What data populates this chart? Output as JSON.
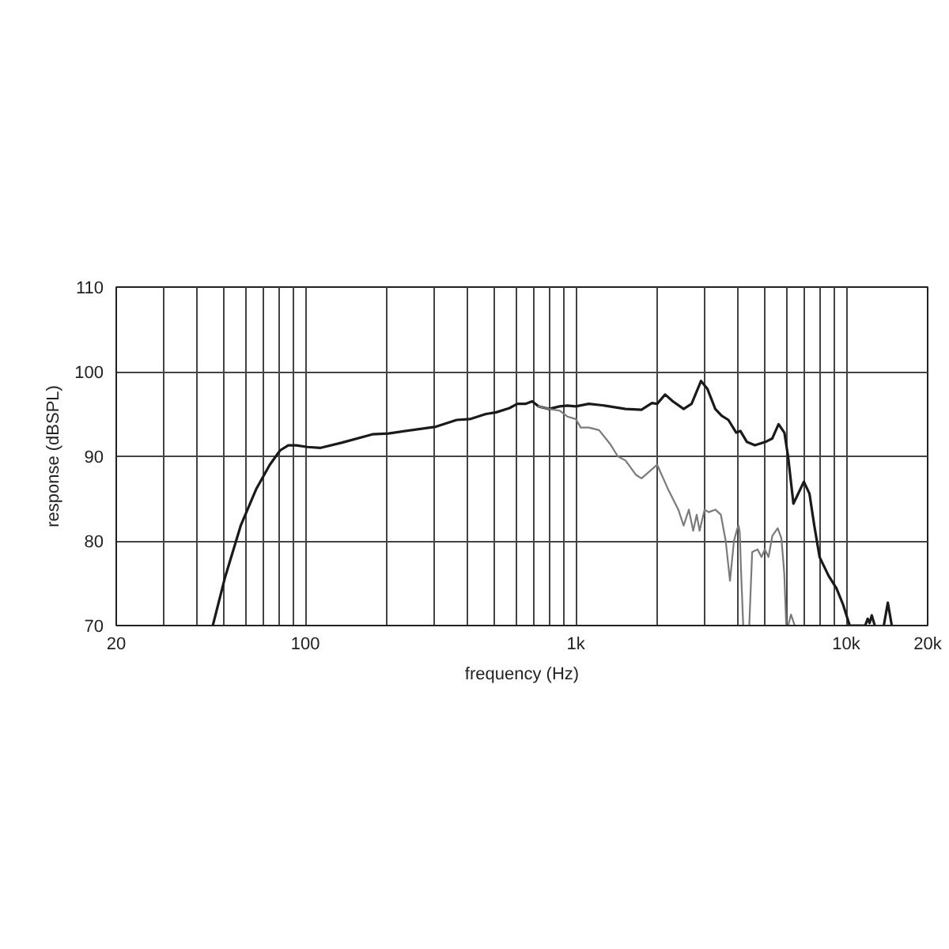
{
  "chart_data": {
    "type": "line",
    "xlabel": "frequency (Hz)",
    "ylabel": "response (dBSPL)",
    "log": "x",
    "grid": true,
    "xlim": [
      20,
      20000
    ],
    "ylim": [
      70,
      110
    ],
    "xticks": [
      20,
      {
        "value": 30,
        "label": null
      },
      {
        "value": 40,
        "label": null
      },
      {
        "value": 50,
        "label": null
      },
      {
        "value": 60,
        "label": null
      },
      {
        "value": 70,
        "label": null
      },
      {
        "value": 80,
        "label": null
      },
      {
        "value": 90,
        "label": null
      },
      100,
      {
        "value": 200,
        "label": null
      },
      {
        "value": 300,
        "label": null
      },
      {
        "value": 400,
        "label": null
      },
      {
        "value": 500,
        "label": null
      },
      {
        "value": 600,
        "label": null
      },
      {
        "value": 700,
        "label": null
      },
      {
        "value": 800,
        "label": null
      },
      {
        "value": 900,
        "label": null
      },
      {
        "value": 1000,
        "label": "1k"
      },
      {
        "value": 2000,
        "label": null
      },
      {
        "value": 3000,
        "label": null
      },
      {
        "value": 4000,
        "label": null
      },
      {
        "value": 5000,
        "label": null
      },
      {
        "value": 6000,
        "label": null
      },
      {
        "value": 7000,
        "label": null
      },
      {
        "value": 8000,
        "label": null
      },
      {
        "value": 9000,
        "label": null
      },
      {
        "value": 10000,
        "label": "10k"
      },
      {
        "value": 20000,
        "label": "20k"
      }
    ],
    "yticks": [
      70,
      80,
      90,
      100,
      110
    ],
    "series": [
      {
        "color": "#1a1a1a",
        "x": [
          45.5,
          50.4,
          57.7,
          66,
          73.9,
          80.7,
          86.5,
          92.5,
          102,
          114,
          136,
          177,
          203,
          304,
          363,
          406,
          465,
          508,
          569,
          608,
          651,
          690,
          728,
          796,
          871,
          931,
          1000,
          1117,
          1277,
          1528,
          1749,
          1913,
          2000,
          2140,
          2286,
          2505,
          2680,
          2904,
          3064,
          3280,
          3461,
          3667,
          3920,
          4060,
          4293,
          4595,
          5024,
          5325,
          5621,
          5907,
          6094,
          6380,
          6580,
          6973,
          7310,
          7620,
          7970,
          8600,
          9200,
          9730,
          10300,
          11750,
          12000,
          12200,
          12430,
          12750,
          13200,
          13770,
          14250,
          14740
        ],
        "values": [
          70.0,
          75.6,
          81.8,
          86.2,
          89.0,
          90.7,
          91.3,
          91.3,
          91.1,
          91.0,
          91.6,
          92.6,
          92.7,
          93.5,
          94.3,
          94.4,
          95.0,
          95.2,
          95.7,
          96.2,
          96.2,
          96.5,
          95.9,
          95.6,
          95.9,
          96.0,
          95.9,
          96.2,
          96.0,
          95.6,
          95.5,
          96.3,
          96.2,
          97.3,
          96.5,
          95.6,
          96.2,
          98.9,
          98.0,
          95.6,
          94.8,
          94.3,
          92.8,
          93.0,
          91.7,
          91.3,
          91.7,
          92.1,
          93.8,
          92.8,
          90.0,
          84.4,
          85.3,
          87.0,
          85.6,
          81.8,
          78.1,
          75.9,
          74.4,
          72.5,
          70.0,
          70.0,
          70.8,
          70.3,
          71.2,
          70.0,
          null,
          70.0,
          72.7,
          70.0
        ]
      },
      {
        "color": "#7a7a7a",
        "x": [
          728,
          796,
          871,
          931,
          1000,
          1043,
          1117,
          1219,
          1337,
          1430,
          1528,
          1671,
          1750,
          2000,
          2188,
          2395,
          2505,
          2619,
          2718,
          2800,
          2869,
          2993,
          3100,
          3280,
          3440,
          3584,
          3717,
          3845,
          3950,
          4000,
          4040,
          4080,
          4160,
          4270,
          4380,
          4490,
          4700,
          4860,
          5000,
          5160,
          5330,
          5580,
          5760,
          5900,
          6000,
          6050,
          6100,
          6250,
          6450
        ],
        "values": [
          95.9,
          95.6,
          95.4,
          94.7,
          94.4,
          93.4,
          93.4,
          93.1,
          91.5,
          90.0,
          89.5,
          87.8,
          87.4,
          89.0,
          86.2,
          83.7,
          81.8,
          83.7,
          81.2,
          83.1,
          81.2,
          83.7,
          83.4,
          83.7,
          83.1,
          80.0,
          75.3,
          80.0,
          81.4,
          81.8,
          81.0,
          76.9,
          70.0,
          null,
          70.0,
          78.7,
          79.0,
          78.1,
          79.0,
          78.1,
          80.6,
          81.5,
          80.3,
          76.2,
          70.0,
          null,
          70.0,
          71.3,
          70.0
        ]
      }
    ]
  }
}
